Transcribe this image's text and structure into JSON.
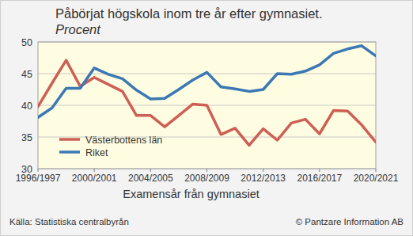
{
  "chart_data": {
    "type": "line",
    "title": "Påbörjat högskola inom tre år efter gymnasiet.",
    "subtitle": "Procent",
    "x_label": "Examensår från gymnasiet",
    "source": "Källa: Statistiska centralbyrån",
    "credit": "© Pantzare Information AB",
    "categories": [
      "1996/1997",
      null,
      null,
      null,
      "2000/2001",
      null,
      null,
      null,
      "2004/2005",
      null,
      null,
      null,
      "2008/2009",
      null,
      null,
      null,
      "2012/2013",
      null,
      null,
      null,
      "2016/2017",
      null,
      null,
      null,
      "2020/2021"
    ],
    "series": [
      {
        "name": "Västerbottens län",
        "color": "#cd5f55",
        "values": [
          39.8,
          43.5,
          47.1,
          43.0,
          44.4,
          43.3,
          42.2,
          38.4,
          38.4,
          36.6,
          38.4,
          40.2,
          40.0,
          35.4,
          36.4,
          33.7,
          36.3,
          34.5,
          37.2,
          37.8,
          35.5,
          39.2,
          39.1,
          36.9,
          34.2
        ]
      },
      {
        "name": "Riket",
        "color": "#3b78b4",
        "values": [
          38.1,
          39.6,
          42.7,
          42.7,
          45.9,
          44.9,
          44.2,
          42.4,
          41.0,
          41.1,
          42.5,
          44.0,
          45.2,
          42.9,
          42.6,
          42.2,
          42.5,
          45.0,
          44.9,
          45.4,
          46.4,
          48.2,
          48.9,
          49.4,
          47.8
        ]
      }
    ],
    "ylim": [
      30,
      50
    ],
    "yticks": [
      30,
      35,
      40,
      45,
      50
    ],
    "grid": true,
    "legend": "lower left"
  }
}
